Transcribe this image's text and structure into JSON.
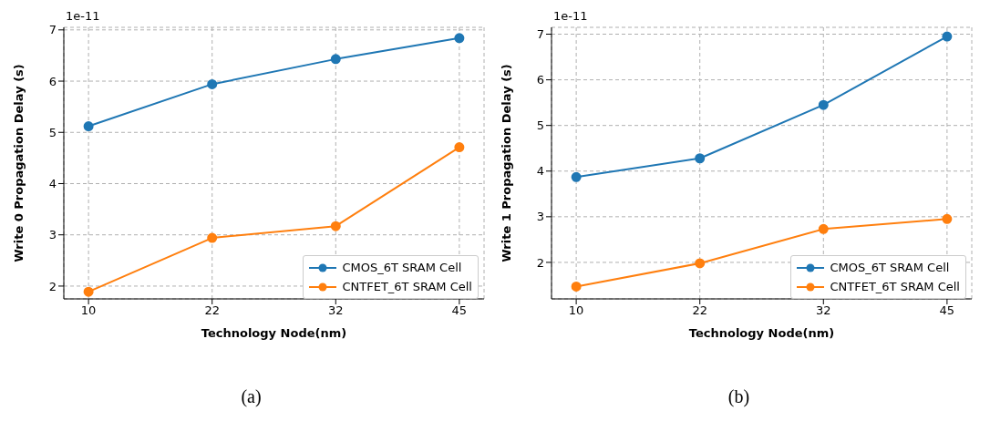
{
  "chart_data": [
    {
      "type": "line",
      "xlabel": "Technology Node(nm)",
      "ylabel": "Write 0 Propagation Delay (s)",
      "categories": [
        "10",
        "22",
        "32",
        "45"
      ],
      "series": [
        {
          "name": "CMOS_6T SRAM Cell",
          "color": "#1f77b4",
          "values": [
            5.12,
            5.94,
            6.43,
            6.84
          ]
        },
        {
          "name": "CNTFET_6T SRAM Cell",
          "color": "#ff7f0e",
          "values": [
            1.89,
            2.94,
            3.17,
            4.71
          ]
        }
      ],
      "ylim": [
        1.75,
        7.05
      ],
      "yticks": [
        2,
        3,
        4,
        5,
        6,
        7
      ],
      "grid": true,
      "legend": "bottom right",
      "marker": "circle",
      "line_style": "solid",
      "annotations": [
        "1e-11",
        "(a)"
      ]
    },
    {
      "type": "line",
      "xlabel": "Technology Node(nm)",
      "ylabel": "Write 1 Propagation Delay (s)",
      "categories": [
        "10",
        "22",
        "32",
        "45"
      ],
      "series": [
        {
          "name": "CMOS_6T SRAM Cell",
          "color": "#1f77b4",
          "values": [
            3.87,
            4.28,
            5.45,
            6.95
          ]
        },
        {
          "name": "CNTFET_6T SRAM Cell",
          "color": "#ff7f0e",
          "values": [
            1.47,
            1.98,
            2.73,
            2.95
          ]
        }
      ],
      "ylim": [
        1.2,
        7.15
      ],
      "yticks": [
        2,
        3,
        4,
        5,
        6,
        7
      ],
      "grid": true,
      "legend": "bottom right",
      "marker": "circle",
      "line_style": "solid",
      "annotations": [
        "1e-11",
        "(b)"
      ]
    }
  ]
}
